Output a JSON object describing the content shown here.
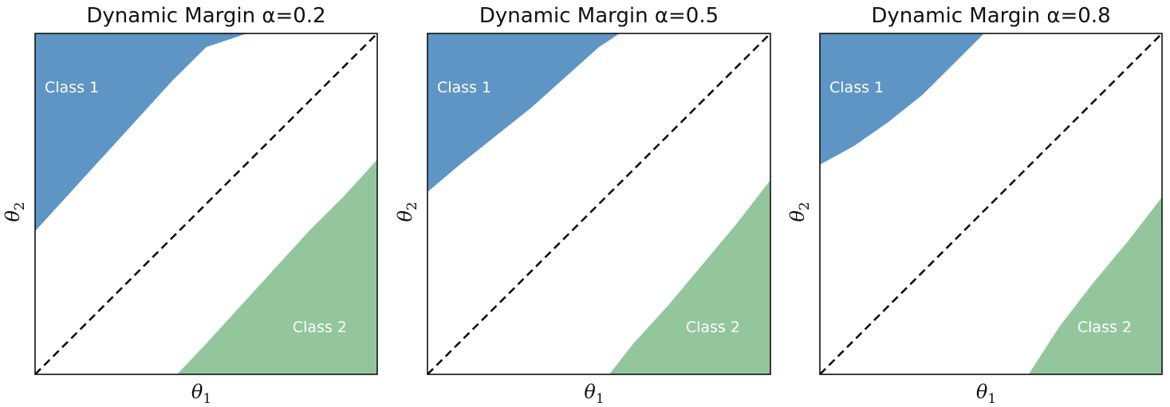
{
  "chart_data": [
    {
      "type": "area",
      "title": "Dynamic Margin α=0.2",
      "alpha": 0.2,
      "xlabel": "θ1",
      "ylabel": "θ2",
      "xlim": [
        0,
        1
      ],
      "ylim": [
        0,
        1
      ],
      "grid": false,
      "diagonal": {
        "style": "dashed",
        "color": "#111111",
        "points": [
          [
            0,
            0
          ],
          [
            1,
            1
          ]
        ]
      },
      "regions": [
        {
          "name": "Class 1",
          "color": "#5e95c5",
          "boundary": [
            [
              0.0,
              0.42
            ],
            [
              0.1,
              0.53
            ],
            [
              0.2,
              0.64
            ],
            [
              0.3,
              0.75
            ],
            [
              0.4,
              0.86
            ],
            [
              0.5,
              0.96
            ],
            [
              0.62,
              1.0
            ]
          ]
        },
        {
          "name": "Class 2",
          "color": "#93c69c",
          "boundary": [
            [
              0.415,
              0.0
            ],
            [
              0.5,
              0.09
            ],
            [
              0.6,
              0.2
            ],
            [
              0.7,
              0.31
            ],
            [
              0.8,
              0.42
            ],
            [
              0.9,
              0.52
            ],
            [
              1.0,
              0.63
            ]
          ]
        }
      ]
    },
    {
      "type": "area",
      "title": "Dynamic Margin α=0.5",
      "alpha": 0.5,
      "xlabel": "θ1",
      "ylabel": "θ2",
      "xlim": [
        0,
        1
      ],
      "ylim": [
        0,
        1
      ],
      "grid": false,
      "diagonal": {
        "style": "dashed",
        "color": "#111111",
        "points": [
          [
            0,
            0
          ],
          [
            1,
            1
          ]
        ]
      },
      "regions": [
        {
          "name": "Class 1",
          "color": "#5e95c5",
          "boundary": [
            [
              0.0,
              0.535
            ],
            [
              0.1,
              0.62
            ],
            [
              0.2,
              0.7
            ],
            [
              0.3,
              0.78
            ],
            [
              0.4,
              0.87
            ],
            [
              0.5,
              0.96
            ],
            [
              0.56,
              1.0
            ]
          ]
        },
        {
          "name": "Class 2",
          "color": "#93c69c",
          "boundary": [
            [
              0.53,
              0.0
            ],
            [
              0.6,
              0.09
            ],
            [
              0.7,
              0.2
            ],
            [
              0.8,
              0.32
            ],
            [
              0.9,
              0.44
            ],
            [
              1.0,
              0.57
            ]
          ]
        }
      ]
    },
    {
      "type": "area",
      "title": "Dynamic Margin α=0.8",
      "alpha": 0.8,
      "xlabel": "θ1",
      "ylabel": "θ2",
      "xlim": [
        0,
        1
      ],
      "ylim": [
        0,
        1
      ],
      "grid": false,
      "diagonal": {
        "style": "dashed",
        "color": "#111111",
        "points": [
          [
            0,
            0
          ],
          [
            1,
            1
          ]
        ]
      },
      "regions": [
        {
          "name": "Class 1",
          "color": "#5e95c5",
          "boundary": [
            [
              0.0,
              0.615
            ],
            [
              0.1,
              0.67
            ],
            [
              0.2,
              0.74
            ],
            [
              0.3,
              0.82
            ],
            [
              0.4,
              0.92
            ],
            [
              0.48,
              1.0
            ]
          ]
        },
        {
          "name": "Class 2",
          "color": "#93c69c",
          "boundary": [
            [
              0.61,
              0.0
            ],
            [
              0.7,
              0.14
            ],
            [
              0.8,
              0.27
            ],
            [
              0.9,
              0.39
            ],
            [
              1.0,
              0.52
            ]
          ]
        }
      ]
    }
  ]
}
